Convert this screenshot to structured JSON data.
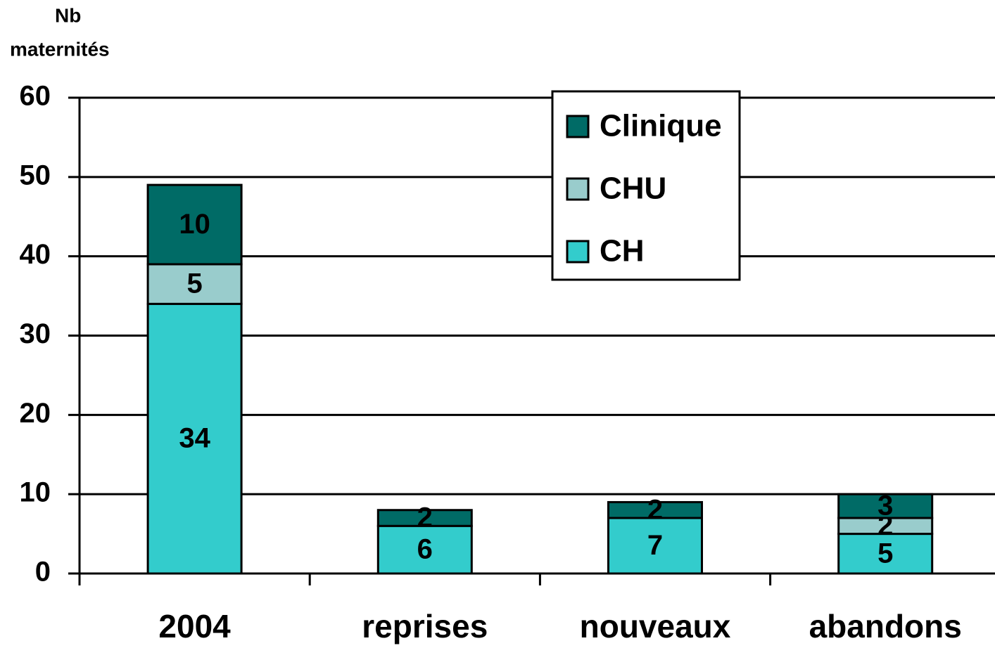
{
  "chart_data": {
    "type": "bar",
    "stacked": true,
    "y_label": [
      "Nb",
      "maternités"
    ],
    "categories": [
      "2004",
      "reprises",
      "nouveaux",
      "abandons"
    ],
    "series": [
      {
        "name": "CH",
        "color": "#33cccc",
        "values": [
          34,
          6,
          7,
          5
        ]
      },
      {
        "name": "CHU",
        "color": "#99cccc",
        "values": [
          5,
          null,
          null,
          2
        ]
      },
      {
        "name": "Clinique",
        "color": "#006b66",
        "values": [
          10,
          2,
          2,
          3
        ]
      }
    ],
    "ylim": [
      0,
      60
    ],
    "yticks": [
      0,
      10,
      20,
      30,
      40,
      50,
      60
    ],
    "grid": true,
    "legend": "top-right"
  }
}
